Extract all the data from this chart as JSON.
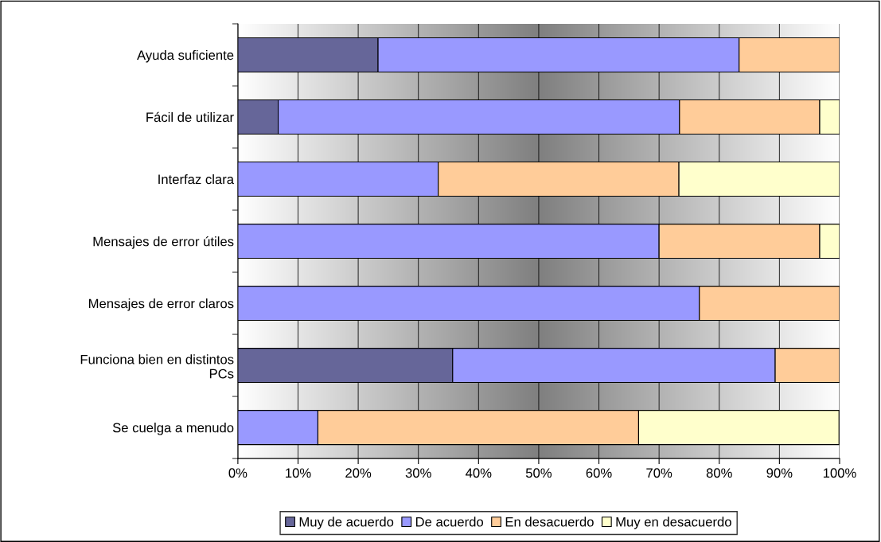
{
  "chart_data": {
    "type": "bar",
    "orientation": "horizontal",
    "stacked": true,
    "categories": [
      "Ayuda suficiente",
      "Fácil de utilizar",
      "Interfaz clara",
      "Mensajes de error útiles",
      "Mensajes de error claros",
      "Funciona bien en distintos\nPCs",
      "Se cuelga a menudo"
    ],
    "series": [
      {
        "name": "Muy de acuerdo",
        "color": "#666699",
        "values": [
          23.3,
          6.7,
          0,
          0,
          0,
          35.7,
          0
        ]
      },
      {
        "name": "De acuerdo",
        "color": "#9999ff",
        "values": [
          60,
          66.7,
          33.3,
          70,
          76.7,
          53.6,
          13.3
        ]
      },
      {
        "name": "En desacuerdo",
        "color": "#ffcc99",
        "values": [
          16.7,
          23.3,
          40,
          26.7,
          23.3,
          10.7,
          53.3
        ]
      },
      {
        "name": "Muy en desacuerdo",
        "color": "#ffffcc",
        "values": [
          0,
          3.3,
          26.7,
          3.3,
          0,
          0,
          33.3
        ]
      }
    ],
    "xlim": [
      0,
      100
    ],
    "xticks": [
      {
        "value": 0,
        "label": "0%"
      },
      {
        "value": 10,
        "label": "10%"
      },
      {
        "value": 20,
        "label": "20%"
      },
      {
        "value": 30,
        "label": "30%"
      },
      {
        "value": 40,
        "label": "40%"
      },
      {
        "value": 50,
        "label": "50%"
      },
      {
        "value": 60,
        "label": "60%"
      },
      {
        "value": 70,
        "label": "70%"
      },
      {
        "value": 80,
        "label": "80%"
      },
      {
        "value": 90,
        "label": "90%"
      },
      {
        "value": 100,
        "label": "100%"
      }
    ],
    "grid": "x",
    "legend": "bottom"
  }
}
